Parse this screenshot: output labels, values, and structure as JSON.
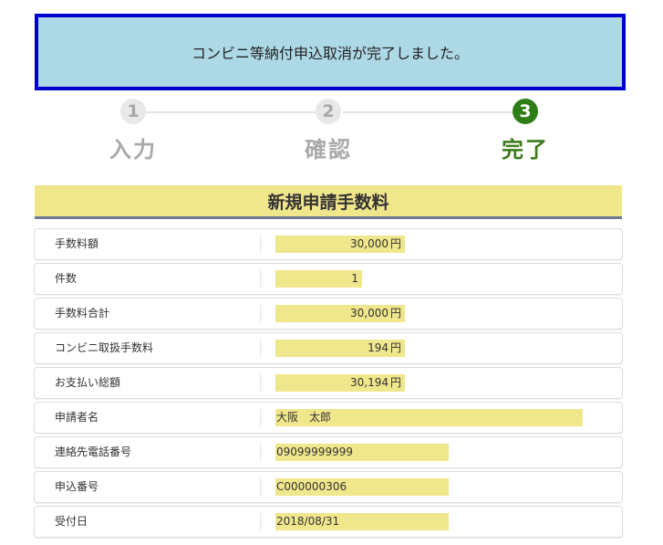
{
  "banner": {
    "message": "コンビニ等納付申込取消が完了しました。"
  },
  "steps": [
    {
      "number": "1",
      "label": "入力",
      "state": "done"
    },
    {
      "number": "2",
      "label": "確認",
      "state": "done"
    },
    {
      "number": "3",
      "label": "完了",
      "state": "current"
    }
  ],
  "section": {
    "title": "新規申請手数料"
  },
  "rows": {
    "fee_amount": {
      "label": "手数料額",
      "value": "30,000",
      "unit": "円"
    },
    "count": {
      "label": "件数",
      "value": "1"
    },
    "fee_total": {
      "label": "手数料合計",
      "value": "30,000",
      "unit": "円"
    },
    "conv_fee": {
      "label": "コンビニ取扱手数料",
      "value": "194",
      "unit": "円"
    },
    "payment_total": {
      "label": "お支払い総額",
      "value": "30,194",
      "unit": "円"
    },
    "applicant": {
      "label": "申請者名",
      "value": "大阪　太郎"
    },
    "phone": {
      "label": "連絡先電話番号",
      "value": "09099999999"
    },
    "application_no": {
      "label": "申込番号",
      "value": "C000000306"
    },
    "received_date": {
      "label": "受付日",
      "value": "2018/08/31"
    }
  },
  "colors": {
    "banner_bg": "#add8e6",
    "banner_border": "#0000cc",
    "highlight": "#f0e68c",
    "step_active": "#2e7d16",
    "step_inactive": "#a9a9a9"
  }
}
